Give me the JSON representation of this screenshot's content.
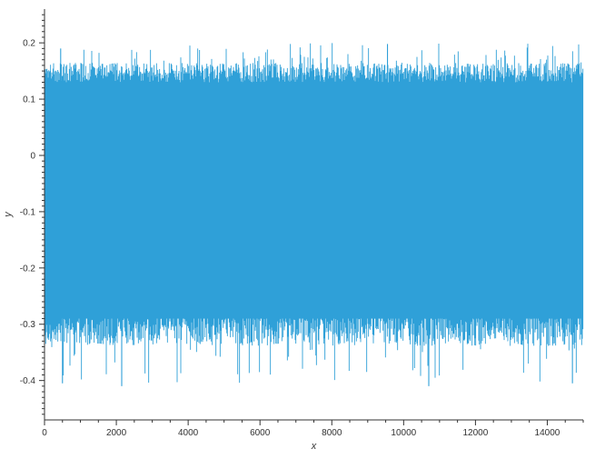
{
  "chart_data": {
    "type": "line",
    "title": "",
    "xlabel": "x",
    "ylabel": "y",
    "xlim": [
      0,
      15000
    ],
    "ylim": [
      -0.47,
      0.26
    ],
    "x_ticks": [
      0,
      2000,
      4000,
      6000,
      8000,
      10000,
      12000,
      14000
    ],
    "x_tick_labels": [
      "0",
      "2000",
      "4000",
      "6000",
      "8000",
      "10000",
      "12000",
      "14000"
    ],
    "y_ticks": [
      0.2,
      0.1,
      0,
      -0.1,
      -0.2,
      -0.3,
      -0.4
    ],
    "y_tick_labels": [
      "0.2",
      "0.1",
      "0",
      "-0.1",
      "-0.2",
      "-0.3",
      "-0.4"
    ],
    "minor_ticks": true,
    "grid": false,
    "legend": "none",
    "series": [
      {
        "color": "#2fa0d8",
        "x_start": 0,
        "x_end": 15000,
        "n_points": 15000,
        "envelope": {
          "typical_max": 0.14,
          "typical_min": -0.3,
          "peak_max": 0.2,
          "peak_min": -0.41,
          "dense_band": [
            -0.29,
            0.13
          ]
        },
        "notable_points": [
          {
            "x": 9550,
            "y": 0.198
          },
          {
            "x": 2150,
            "y": -0.41
          },
          {
            "x": 10700,
            "y": -0.41
          },
          {
            "x": 14700,
            "y": -0.405
          },
          {
            "x": 450,
            "y": 0.19
          },
          {
            "x": 500,
            "y": -0.405
          }
        ]
      }
    ]
  }
}
